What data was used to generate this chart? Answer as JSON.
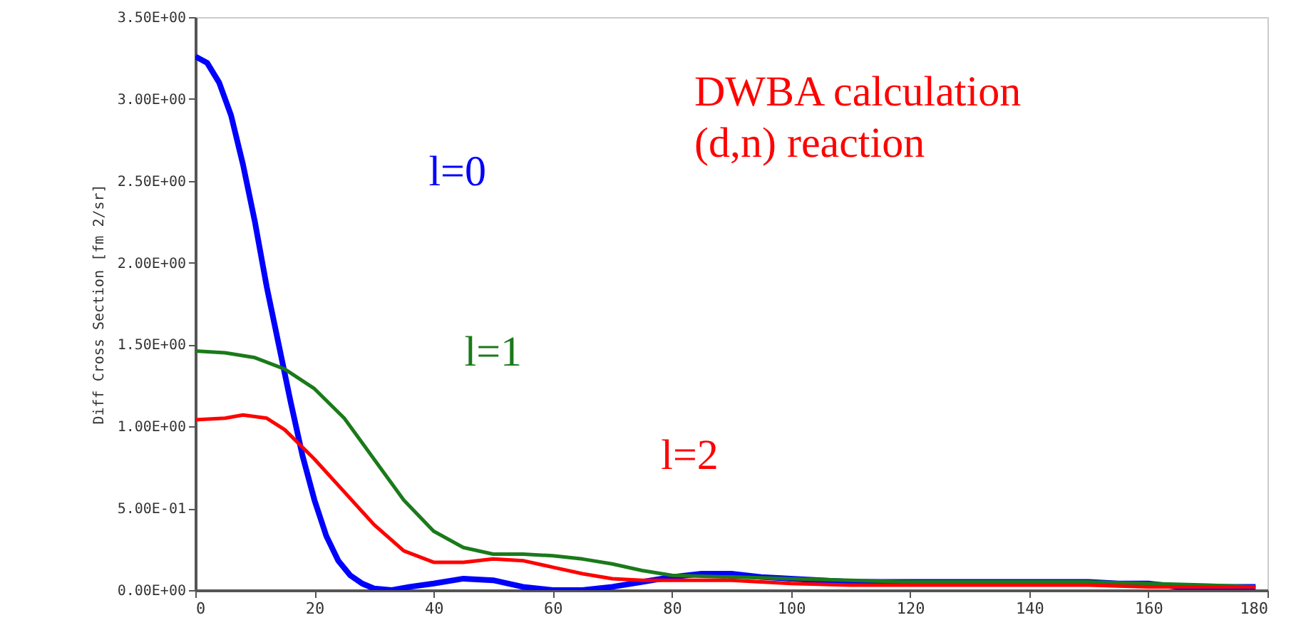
{
  "chart_data": {
    "type": "line",
    "ylabel": "Diff Cross Section [fm 2/sr]",
    "annotations": [
      "DWBA calculation",
      "(d,n) reaction"
    ],
    "xlim": [
      0,
      180
    ],
    "xticks": [
      0,
      20,
      40,
      60,
      80,
      100,
      120,
      140,
      160,
      180
    ],
    "ylim": [
      0,
      3.5
    ],
    "yticks": [
      {
        "value": 0,
        "label": "0.00E+00"
      },
      {
        "value": 0.5,
        "label": "5.00E-01"
      },
      {
        "value": 1,
        "label": "1.00E+00"
      },
      {
        "value": 1.5,
        "label": "1.50E+00"
      },
      {
        "value": 2,
        "label": "2.00E+00"
      },
      {
        "value": 2.5,
        "label": "2.50E+00"
      },
      {
        "value": 3,
        "label": "3.00E+00"
      },
      {
        "value": 3.5,
        "label": "3.50E+00"
      }
    ],
    "grid": false,
    "legend": false,
    "marker": "none",
    "line_style": "solid",
    "series": [
      {
        "name": "l=0",
        "color": "#0000ff",
        "x": [
          0,
          2,
          4,
          6,
          8,
          10,
          12,
          14,
          16,
          18,
          20,
          22,
          24,
          26,
          28,
          30,
          33,
          36,
          40,
          45,
          50,
          55,
          60,
          65,
          70,
          75,
          80,
          85,
          90,
          95,
          100,
          110,
          120,
          130,
          140,
          150,
          155,
          160,
          165,
          170,
          178
        ],
        "values": [
          3.26,
          3.22,
          3.1,
          2.9,
          2.6,
          2.25,
          1.85,
          1.5,
          1.15,
          0.82,
          0.55,
          0.33,
          0.18,
          0.09,
          0.04,
          0.01,
          0.0,
          0.02,
          0.04,
          0.07,
          0.06,
          0.02,
          0.0,
          0.0,
          0.02,
          0.05,
          0.08,
          0.1,
          0.1,
          0.08,
          0.07,
          0.05,
          0.05,
          0.05,
          0.05,
          0.05,
          0.04,
          0.04,
          0.02,
          0.02,
          0.02
        ]
      },
      {
        "name": "l=1",
        "color": "#1a7a1a",
        "x": [
          0,
          5,
          10,
          15,
          20,
          25,
          30,
          35,
          40,
          45,
          50,
          55,
          60,
          65,
          70,
          75,
          80,
          90,
          100,
          110,
          120,
          140,
          150,
          160,
          170,
          178
        ],
        "values": [
          1.46,
          1.45,
          1.42,
          1.35,
          1.23,
          1.05,
          0.8,
          0.55,
          0.36,
          0.26,
          0.22,
          0.22,
          0.21,
          0.19,
          0.16,
          0.12,
          0.09,
          0.08,
          0.07,
          0.06,
          0.05,
          0.05,
          0.05,
          0.04,
          0.03,
          0.02
        ]
      },
      {
        "name": "l=2",
        "color": "#ff0000",
        "x": [
          0,
          5,
          8,
          12,
          15,
          20,
          25,
          30,
          35,
          40,
          45,
          50,
          55,
          60,
          65,
          70,
          75,
          80,
          90,
          100,
          110,
          120,
          150,
          160,
          178
        ],
        "values": [
          1.04,
          1.05,
          1.07,
          1.05,
          0.98,
          0.8,
          0.6,
          0.4,
          0.24,
          0.17,
          0.17,
          0.19,
          0.18,
          0.14,
          0.1,
          0.07,
          0.06,
          0.06,
          0.06,
          0.04,
          0.03,
          0.03,
          0.03,
          0.02,
          0.02
        ]
      }
    ]
  }
}
